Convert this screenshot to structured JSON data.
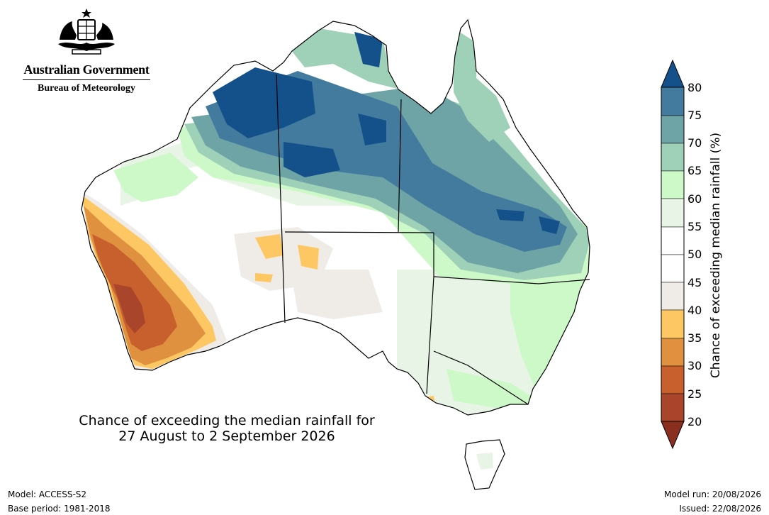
{
  "agency": {
    "title": "Australian Government",
    "subtitle": "Bureau of Meteorology"
  },
  "map": {
    "title_line1": "Chance of exceeding the median rainfall for",
    "title_line2": "27 August to 2 September 2026",
    "region": "Australia",
    "colors": {
      "c20_25": "#a8452a",
      "c25_30": "#c8602e",
      "c30_35": "#df9140",
      "c35_40": "#fdc864",
      "c40_45": "#efebe6",
      "c45_50": "#ffffff",
      "c50_55": "#ffffff",
      "c55_60": "#e8f5e6",
      "c60_65": "#cdf8c8",
      "c65_70": "#9fd1b8",
      "c70_75": "#6ea4a6",
      "c75_80": "#437b9f",
      "c80_plus": "#14518a",
      "c_below_20": "#8a2f20"
    }
  },
  "colorbar": {
    "label": "Chance of exceeding median rainfall (%)",
    "ticks": [
      "80",
      "75",
      "70",
      "65",
      "60",
      "55",
      "50",
      "45",
      "40",
      "35",
      "30",
      "25",
      "20"
    ]
  },
  "footer": {
    "model": "Model: ACCESS-S2",
    "base_period": "Base period: 1981-2018",
    "model_run": "Model run: 20/08/2026",
    "issued": "Issued: 22/08/2026"
  }
}
